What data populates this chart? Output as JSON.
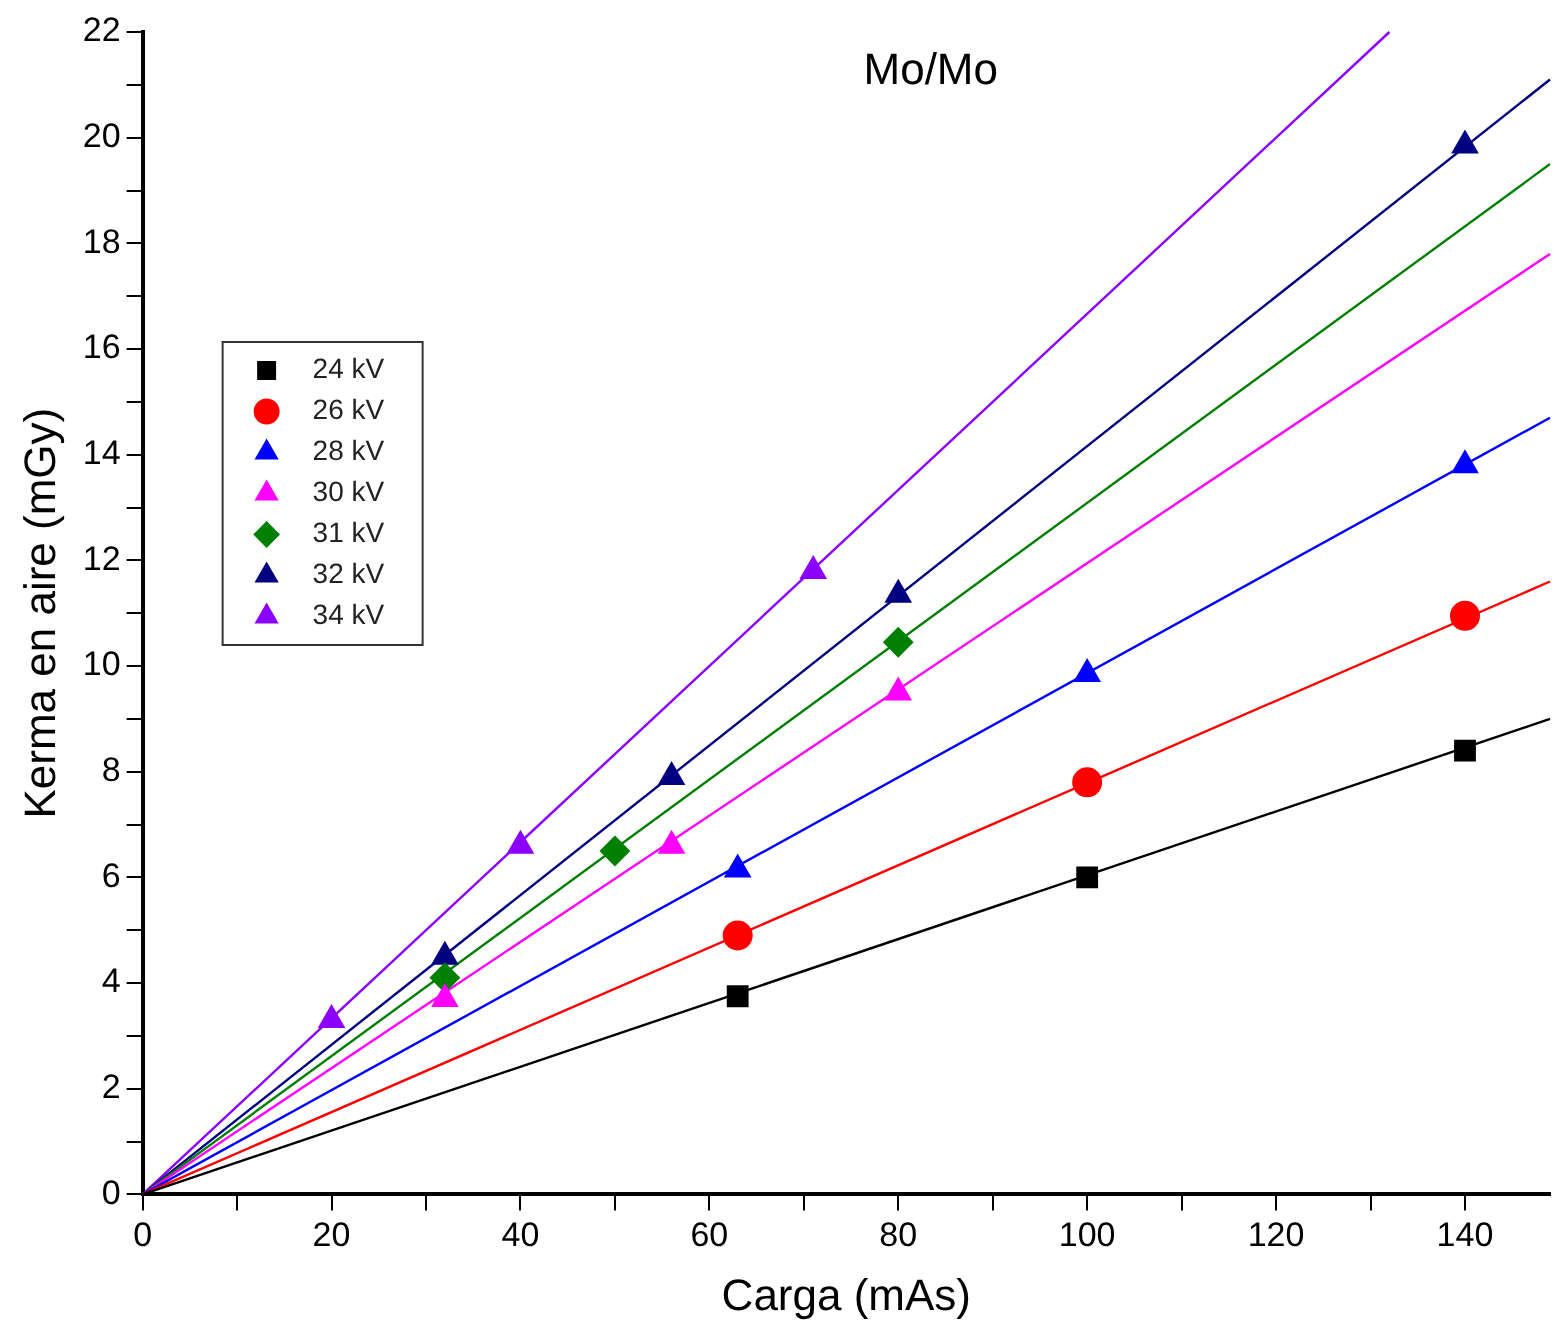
{
  "chart_data": {
    "type": "scatter",
    "title": "Mo/Mo",
    "xlabel": "Carga (mAs)",
    "ylabel": "Kerma en aire (mGy)",
    "xlim": [
      0,
      149
    ],
    "ylim": [
      0,
      22
    ],
    "xticks": [
      0,
      {
        "value": 10,
        "label": null
      },
      20,
      {
        "value": 30,
        "label": null
      },
      40,
      {
        "value": 50,
        "label": null
      },
      60,
      {
        "value": 70,
        "label": null
      },
      80,
      {
        "value": 90,
        "label": null
      },
      100,
      {
        "value": 110,
        "label": null
      },
      120,
      {
        "value": 130,
        "label": null
      },
      140
    ],
    "yticks": [
      0,
      {
        "value": 1,
        "label": null
      },
      2,
      {
        "value": 3,
        "label": null
      },
      4,
      {
        "value": 5,
        "label": null
      },
      6,
      {
        "value": 7,
        "label": null
      },
      8,
      {
        "value": 9,
        "label": null
      },
      10,
      {
        "value": 11,
        "label": null
      },
      12,
      {
        "value": 13,
        "label": null
      },
      14,
      {
        "value": 15,
        "label": null
      },
      16,
      {
        "value": 17,
        "label": null
      },
      18,
      {
        "value": 19,
        "label": null
      },
      20,
      {
        "value": 21,
        "label": null
      },
      22
    ],
    "grid": false,
    "legend": "top left",
    "series": [
      {
        "name": "24 kV",
        "color": "#000000",
        "marker": "square",
        "x": [
          63,
          100,
          140
        ],
        "values": [
          3.75,
          6.0,
          8.4
        ]
      },
      {
        "name": "26 kV",
        "color": "#ff0000",
        "marker": "circle",
        "x": [
          63,
          100,
          140
        ],
        "values": [
          4.9,
          7.8,
          10.95
        ]
      },
      {
        "name": "28 kV",
        "color": "#0000ff",
        "marker": "triangle",
        "x": [
          63,
          100,
          140
        ],
        "values": [
          6.15,
          9.85,
          13.8
        ]
      },
      {
        "name": "30 kV",
        "color": "#ff00ff",
        "marker": "triangle",
        "x": [
          32,
          56,
          80
        ],
        "values": [
          3.7,
          6.6,
          9.5
        ]
      },
      {
        "name": "31 kV",
        "color": "#008000",
        "marker": "diamond",
        "x": [
          32,
          50,
          80
        ],
        "values": [
          4.1,
          6.5,
          10.45
        ]
      },
      {
        "name": "32 kV",
        "color": "#000080",
        "marker": "triangle",
        "x": [
          32,
          56,
          80,
          140
        ],
        "values": [
          4.5,
          7.9,
          11.35,
          19.85
        ]
      },
      {
        "name": "34 kV",
        "color": "#8b00ff",
        "marker": "triangle",
        "x": [
          20,
          40,
          71
        ],
        "values": [
          3.3,
          6.6,
          11.8
        ]
      },
      {
        "type": "line",
        "color": "#000000",
        "marker": "none",
        "x": [
          0,
          149
        ],
        "values": [
          0,
          9.0
        ]
      },
      {
        "type": "line",
        "color": "#ff0000",
        "marker": "none",
        "x": [
          0,
          149
        ],
        "values": [
          0,
          11.6
        ]
      },
      {
        "type": "line",
        "color": "#0000ff",
        "marker": "none",
        "x": [
          0,
          149
        ],
        "values": [
          0,
          14.7
        ]
      },
      {
        "type": "line",
        "color": "#ff00ff",
        "marker": "none",
        "x": [
          0,
          149
        ],
        "values": [
          0,
          17.8
        ]
      },
      {
        "type": "line",
        "color": "#008000",
        "marker": "none",
        "x": [
          0,
          149
        ],
        "values": [
          0,
          19.5
        ]
      },
      {
        "type": "line",
        "color": "#000080",
        "marker": "none",
        "x": [
          0,
          149
        ],
        "values": [
          0,
          21.1
        ]
      },
      {
        "type": "line",
        "color": "#8b00ff",
        "marker": "none",
        "x": [
          0,
          132
        ],
        "values": [
          0,
          22
        ]
      }
    ]
  }
}
